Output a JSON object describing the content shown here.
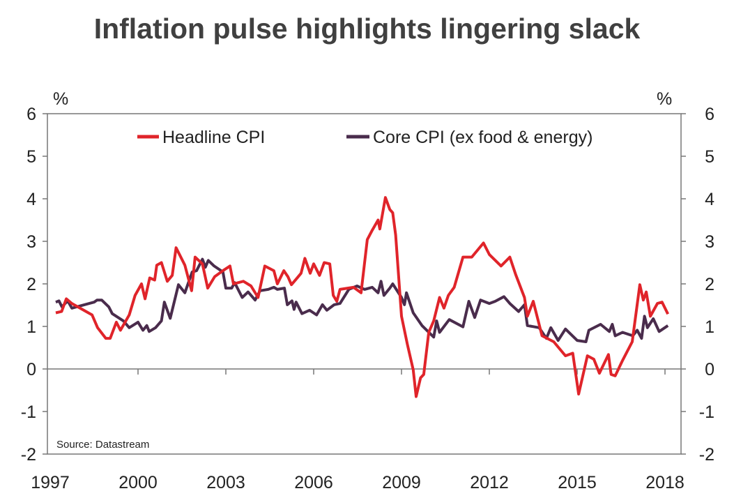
{
  "chart_data": {
    "type": "line",
    "title": "Inflation pulse highlights lingering slack",
    "ylabel_left": "%",
    "ylabel_right": "%",
    "ylim": [
      -2,
      6
    ],
    "yticks": [
      -2,
      -1,
      0,
      1,
      2,
      3,
      4,
      5,
      6
    ],
    "xlim": [
      1997,
      2018
    ],
    "xticks": [
      1997,
      2000,
      2003,
      2006,
      2009,
      2012,
      2015,
      2018
    ],
    "grid": false,
    "legend_position": "top",
    "source": "Source: Datastream",
    "colors": {
      "headline": "#e0242a",
      "core": "#4a2c4c"
    },
    "series": [
      {
        "name": "Headline CPI",
        "key": "headline",
        "points": [
          [
            1997.19,
            1.32
          ],
          [
            1997.39,
            1.35
          ],
          [
            1997.55,
            1.65
          ],
          [
            1997.74,
            1.54
          ],
          [
            1998.43,
            1.27
          ],
          [
            1998.62,
            0.97
          ],
          [
            1998.9,
            0.72
          ],
          [
            1999.05,
            0.72
          ],
          [
            1999.26,
            1.1
          ],
          [
            1999.4,
            0.91
          ],
          [
            1999.7,
            1.27
          ],
          [
            1999.9,
            1.73
          ],
          [
            2000.12,
            2.0
          ],
          [
            2000.24,
            1.65
          ],
          [
            2000.4,
            2.14
          ],
          [
            2000.57,
            2.09
          ],
          [
            2000.64,
            2.44
          ],
          [
            2000.8,
            2.5
          ],
          [
            2001.0,
            2.06
          ],
          [
            2001.17,
            2.2
          ],
          [
            2001.3,
            2.85
          ],
          [
            2001.6,
            2.44
          ],
          [
            2001.83,
            1.84
          ],
          [
            2001.95,
            2.63
          ],
          [
            2002.2,
            2.47
          ],
          [
            2002.38,
            1.9
          ],
          [
            2002.62,
            2.17
          ],
          [
            2002.9,
            2.31
          ],
          [
            2003.14,
            2.42
          ],
          [
            2003.26,
            2.0
          ],
          [
            2003.6,
            2.06
          ],
          [
            2003.86,
            1.95
          ],
          [
            2004.1,
            1.68
          ],
          [
            2004.33,
            2.42
          ],
          [
            2004.64,
            2.31
          ],
          [
            2004.76,
            2.0
          ],
          [
            2004.98,
            2.31
          ],
          [
            2005.12,
            2.17
          ],
          [
            2005.24,
            1.98
          ],
          [
            2005.4,
            2.11
          ],
          [
            2005.57,
            2.25
          ],
          [
            2005.7,
            2.6
          ],
          [
            2005.88,
            2.25
          ],
          [
            2006.0,
            2.47
          ],
          [
            2006.2,
            2.2
          ],
          [
            2006.36,
            2.5
          ],
          [
            2006.55,
            2.47
          ],
          [
            2006.67,
            1.73
          ],
          [
            2006.79,
            1.59
          ],
          [
            2006.9,
            1.87
          ],
          [
            2007.36,
            1.92
          ],
          [
            2007.62,
            1.79
          ],
          [
            2007.83,
            3.04
          ],
          [
            2008.0,
            3.26
          ],
          [
            2008.2,
            3.5
          ],
          [
            2008.26,
            3.29
          ],
          [
            2008.45,
            4.03
          ],
          [
            2008.6,
            3.75
          ],
          [
            2008.7,
            3.67
          ],
          [
            2008.8,
            3.15
          ],
          [
            2009.0,
            1.24
          ],
          [
            2009.2,
            0.58
          ],
          [
            2009.4,
            -0.02
          ],
          [
            2009.5,
            -0.65
          ],
          [
            2009.65,
            -0.21
          ],
          [
            2009.76,
            -0.13
          ],
          [
            2009.93,
            0.86
          ],
          [
            2010.1,
            1.13
          ],
          [
            2010.3,
            1.68
          ],
          [
            2010.45,
            1.43
          ],
          [
            2010.6,
            1.73
          ],
          [
            2010.8,
            1.92
          ],
          [
            2011.1,
            2.63
          ],
          [
            2011.4,
            2.63
          ],
          [
            2011.8,
            2.96
          ],
          [
            2012.0,
            2.69
          ],
          [
            2012.4,
            2.42
          ],
          [
            2012.7,
            2.63
          ],
          [
            2012.9,
            2.22
          ],
          [
            2013.2,
            1.68
          ],
          [
            2013.3,
            1.24
          ],
          [
            2013.5,
            1.59
          ],
          [
            2013.8,
            0.78
          ],
          [
            2014.2,
            0.64
          ],
          [
            2014.6,
            0.31
          ],
          [
            2014.85,
            0.37
          ],
          [
            2015.05,
            -0.59
          ],
          [
            2015.35,
            0.31
          ],
          [
            2015.57,
            0.23
          ],
          [
            2015.76,
            -0.1
          ],
          [
            2016.07,
            0.34
          ],
          [
            2016.16,
            -0.13
          ],
          [
            2016.3,
            -0.16
          ],
          [
            2016.55,
            0.2
          ],
          [
            2016.88,
            0.64
          ],
          [
            2017.14,
            1.98
          ],
          [
            2017.26,
            1.62
          ],
          [
            2017.36,
            1.81
          ],
          [
            2017.5,
            1.24
          ],
          [
            2017.74,
            1.54
          ],
          [
            2017.9,
            1.57
          ],
          [
            2018.1,
            1.29
          ]
        ]
      },
      {
        "name": "Core CPI (ex food & energy)",
        "key": "core",
        "points": [
          [
            1997.19,
            1.57
          ],
          [
            1997.3,
            1.6
          ],
          [
            1997.4,
            1.46
          ],
          [
            1997.6,
            1.6
          ],
          [
            1997.74,
            1.43
          ],
          [
            1998.5,
            1.57
          ],
          [
            1998.6,
            1.62
          ],
          [
            1998.76,
            1.62
          ],
          [
            1999.0,
            1.46
          ],
          [
            1999.12,
            1.3
          ],
          [
            1999.5,
            1.13
          ],
          [
            1999.7,
            0.97
          ],
          [
            2000.0,
            1.1
          ],
          [
            2000.17,
            0.91
          ],
          [
            2000.3,
            1.02
          ],
          [
            2000.38,
            0.88
          ],
          [
            2000.6,
            0.97
          ],
          [
            2000.8,
            1.13
          ],
          [
            2000.9,
            1.57
          ],
          [
            2001.1,
            1.19
          ],
          [
            2001.38,
            1.98
          ],
          [
            2001.6,
            1.79
          ],
          [
            2001.85,
            2.28
          ],
          [
            2002.0,
            2.31
          ],
          [
            2002.2,
            2.58
          ],
          [
            2002.3,
            2.39
          ],
          [
            2002.4,
            2.55
          ],
          [
            2002.6,
            2.42
          ],
          [
            2002.9,
            2.28
          ],
          [
            2003.0,
            1.9
          ],
          [
            2003.2,
            1.9
          ],
          [
            2003.3,
            2.03
          ],
          [
            2003.56,
            1.68
          ],
          [
            2003.76,
            1.81
          ],
          [
            2004.0,
            1.62
          ],
          [
            2004.17,
            1.84
          ],
          [
            2004.45,
            1.87
          ],
          [
            2004.64,
            1.92
          ],
          [
            2004.76,
            1.87
          ],
          [
            2005.0,
            1.9
          ],
          [
            2005.1,
            1.51
          ],
          [
            2005.26,
            1.6
          ],
          [
            2005.33,
            1.4
          ],
          [
            2005.4,
            1.57
          ],
          [
            2005.6,
            1.3
          ],
          [
            2005.86,
            1.38
          ],
          [
            2006.1,
            1.27
          ],
          [
            2006.3,
            1.51
          ],
          [
            2006.45,
            1.38
          ],
          [
            2006.7,
            1.51
          ],
          [
            2006.9,
            1.54
          ],
          [
            2007.2,
            1.87
          ],
          [
            2007.48,
            1.95
          ],
          [
            2007.74,
            1.87
          ],
          [
            2008.0,
            1.92
          ],
          [
            2008.2,
            1.79
          ],
          [
            2008.3,
            2.06
          ],
          [
            2008.4,
            1.73
          ],
          [
            2008.6,
            1.9
          ],
          [
            2008.7,
            2.0
          ],
          [
            2009.0,
            1.68
          ],
          [
            2009.1,
            1.51
          ],
          [
            2009.17,
            1.79
          ],
          [
            2009.4,
            1.32
          ],
          [
            2009.7,
            1.02
          ],
          [
            2010.1,
            0.75
          ],
          [
            2010.2,
            1.13
          ],
          [
            2010.3,
            0.86
          ],
          [
            2010.63,
            1.16
          ],
          [
            2011.1,
            0.99
          ],
          [
            2011.3,
            1.59
          ],
          [
            2011.5,
            1.21
          ],
          [
            2011.7,
            1.62
          ],
          [
            2012.0,
            1.54
          ],
          [
            2012.2,
            1.59
          ],
          [
            2012.5,
            1.7
          ],
          [
            2012.7,
            1.54
          ],
          [
            2013.0,
            1.35
          ],
          [
            2013.2,
            1.51
          ],
          [
            2013.3,
            1.02
          ],
          [
            2013.7,
            0.97
          ],
          [
            2013.95,
            0.72
          ],
          [
            2014.1,
            0.97
          ],
          [
            2014.35,
            0.67
          ],
          [
            2014.6,
            0.94
          ],
          [
            2015.0,
            0.67
          ],
          [
            2015.3,
            0.64
          ],
          [
            2015.4,
            0.91
          ],
          [
            2015.8,
            1.05
          ],
          [
            2016.1,
            0.88
          ],
          [
            2016.2,
            1.05
          ],
          [
            2016.3,
            0.78
          ],
          [
            2016.55,
            0.86
          ],
          [
            2016.9,
            0.78
          ],
          [
            2017.05,
            0.91
          ],
          [
            2017.2,
            0.72
          ],
          [
            2017.3,
            1.24
          ],
          [
            2017.4,
            0.97
          ],
          [
            2017.6,
            1.18
          ],
          [
            2017.8,
            0.88
          ],
          [
            2018.1,
            1.02
          ]
        ]
      }
    ]
  }
}
